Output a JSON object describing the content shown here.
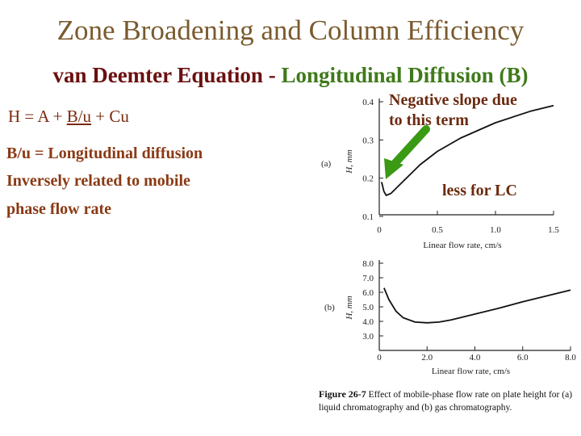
{
  "slide": {
    "title": "Zone Broadening and Column Efficiency",
    "subtitle_a": "van Deemter Equation - ",
    "subtitle_b": "Longitudinal Diffusion (B)",
    "equation": {
      "start": "H = A + ",
      "underlined": "B/u",
      "end": " + Cu"
    },
    "body": [
      "B/u = Longitudinal diffusion",
      "Inversely related to mobile",
      "phase flow rate"
    ],
    "annotation_slope": [
      "Negative slope due",
      "to this term"
    ],
    "annotation_lc": "less for LC",
    "arrow_color": "#3a9a14"
  },
  "figure": {
    "caption_label": "Figure 26-7",
    "caption_text": "Effect of mobile-phase flow rate on plate height for (a) liquid chromatography and (b) gas chromatography."
  },
  "chart_data": [
    {
      "type": "line",
      "panel_label": "(a)",
      "ylabel": "H, mm",
      "xlabel": "Linear flow rate, cm/s",
      "x_ticks": [
        "0",
        "0.5",
        "1.0",
        "1.5"
      ],
      "y_ticks": [
        "0.1",
        "0.2",
        "0.3",
        "0.4"
      ],
      "xlim": [
        0,
        1.5
      ],
      "ylim": [
        0.1,
        0.4
      ],
      "series": [
        {
          "x": [
            0.02,
            0.04,
            0.06,
            0.1,
            0.2,
            0.35,
            0.5,
            0.7,
            1.0,
            1.3,
            1.5
          ],
          "y": [
            0.19,
            0.165,
            0.155,
            0.16,
            0.19,
            0.235,
            0.27,
            0.305,
            0.345,
            0.375,
            0.39
          ]
        }
      ]
    },
    {
      "type": "line",
      "panel_label": "(b)",
      "ylabel": "H, mm",
      "xlabel": "Linear flow rate, cm/s",
      "x_ticks": [
        "0",
        "2.0",
        "4.0",
        "6.0",
        "8.0"
      ],
      "y_ticks": [
        "3.0",
        "4.0",
        "5.0",
        "6.0",
        "7.0",
        "8.0"
      ],
      "xlim": [
        0,
        8
      ],
      "ylim": [
        2,
        8
      ],
      "series": [
        {
          "x": [
            0.2,
            0.4,
            0.7,
            1.0,
            1.5,
            2.0,
            2.5,
            3.0,
            4.0,
            5.0,
            6.0,
            7.0,
            8.0
          ],
          "y": [
            6.3,
            5.5,
            4.7,
            4.25,
            3.95,
            3.9,
            3.95,
            4.1,
            4.5,
            4.9,
            5.35,
            5.75,
            6.15
          ]
        }
      ]
    }
  ]
}
